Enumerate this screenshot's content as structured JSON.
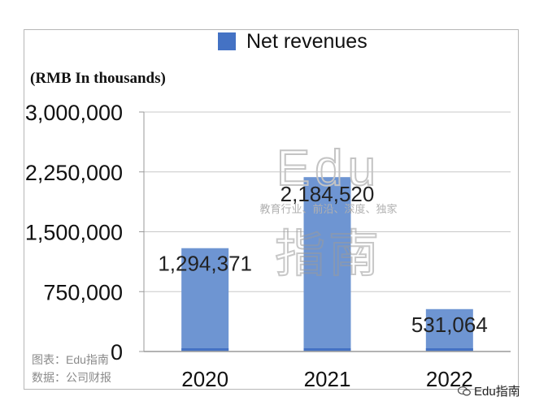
{
  "chart_data": {
    "type": "bar",
    "categories": [
      "2020",
      "2021",
      "2022"
    ],
    "series": [
      {
        "name": "Net revenues",
        "values": [
          1294371,
          2184520,
          531064
        ]
      }
    ],
    "data_labels": [
      "1,294,371",
      "2,184,520",
      "531,064"
    ],
    "yticks": [
      0,
      750000,
      1500000,
      2250000,
      3000000
    ],
    "ytick_labels": [
      "0",
      "750,000",
      "1,500,000",
      "2,250,000",
      "3,000,000"
    ],
    "ylim": [
      0,
      3000000
    ],
    "unit_label": "(RMB In thousands)",
    "grid": true,
    "legend_position": "top",
    "colors": {
      "bar": "#6e95d2",
      "bar_base": "#4472c4",
      "grid": "#c8c8c8",
      "axis": "#9a9a9a",
      "legend": "#4472c4"
    }
  },
  "watermark": {
    "logo_top": "Edu",
    "logo_bottom": "指南",
    "tagline": "教育行业、前沿、深度、独家"
  },
  "caption": {
    "chart_credit": "图表：Edu指南",
    "data_source": "数据：公司财报"
  },
  "brand": {
    "icon": "wechat-icon",
    "label": "Edu指南"
  }
}
